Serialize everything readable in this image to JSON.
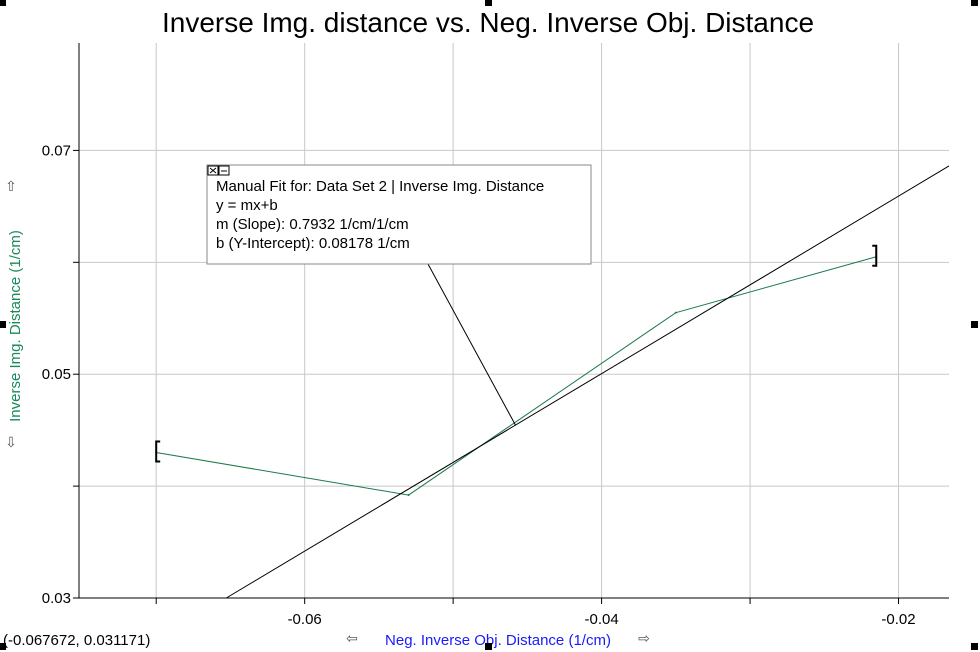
{
  "chart_data": {
    "type": "line",
    "title": "Inverse Img. distance vs. Neg. Inverse Obj. Distance",
    "xlabel": "Neg. Inverse Obj. Distance (1/cm)",
    "ylabel": "Inverse Img. Distance (1/cm)",
    "xlim": [
      -0.0752,
      -0.0166
    ],
    "ylim": [
      0.03,
      0.0796
    ],
    "x_ticks": [
      -0.06,
      -0.04,
      -0.02
    ],
    "y_ticks": [
      0.03,
      0.05,
      0.07
    ],
    "x_tick_labels": [
      "-0.06",
      "-0.04",
      "-0.02"
    ],
    "y_tick_labels": [
      "0.03",
      "0.05",
      "0.07"
    ],
    "grid": true,
    "series": [
      {
        "color": "#1a7a4a",
        "points": [
          {
            "x": -0.07,
            "y": 0.043
          },
          {
            "x": -0.053,
            "y": 0.0392
          },
          {
            "x": -0.035,
            "y": 0.0555
          },
          {
            "x": -0.0215,
            "y": 0.0605
          }
        ]
      }
    ],
    "fit": {
      "color": "#000000",
      "slope": 0.7932,
      "intercept": 0.08178,
      "label_lines": [
        "Manual Fit for:  Data Set 2 | Inverse Img. Distance",
        "y = mx+b",
        "m (Slope): 0.7932 1/cm/1/cm",
        "b (Y-Intercept): 0.08178 1/cm"
      ]
    },
    "cursor_readout": "(-0.067672, 0.031171)"
  },
  "icons": {
    "close": "close-icon",
    "minimize": "minimize-icon",
    "x_arrow_left": "arrow-left-icon",
    "x_arrow_right": "arrow-right-icon",
    "y_arrow_up": "arrow-up-icon",
    "y_arrow_down": "arrow-down-icon"
  }
}
